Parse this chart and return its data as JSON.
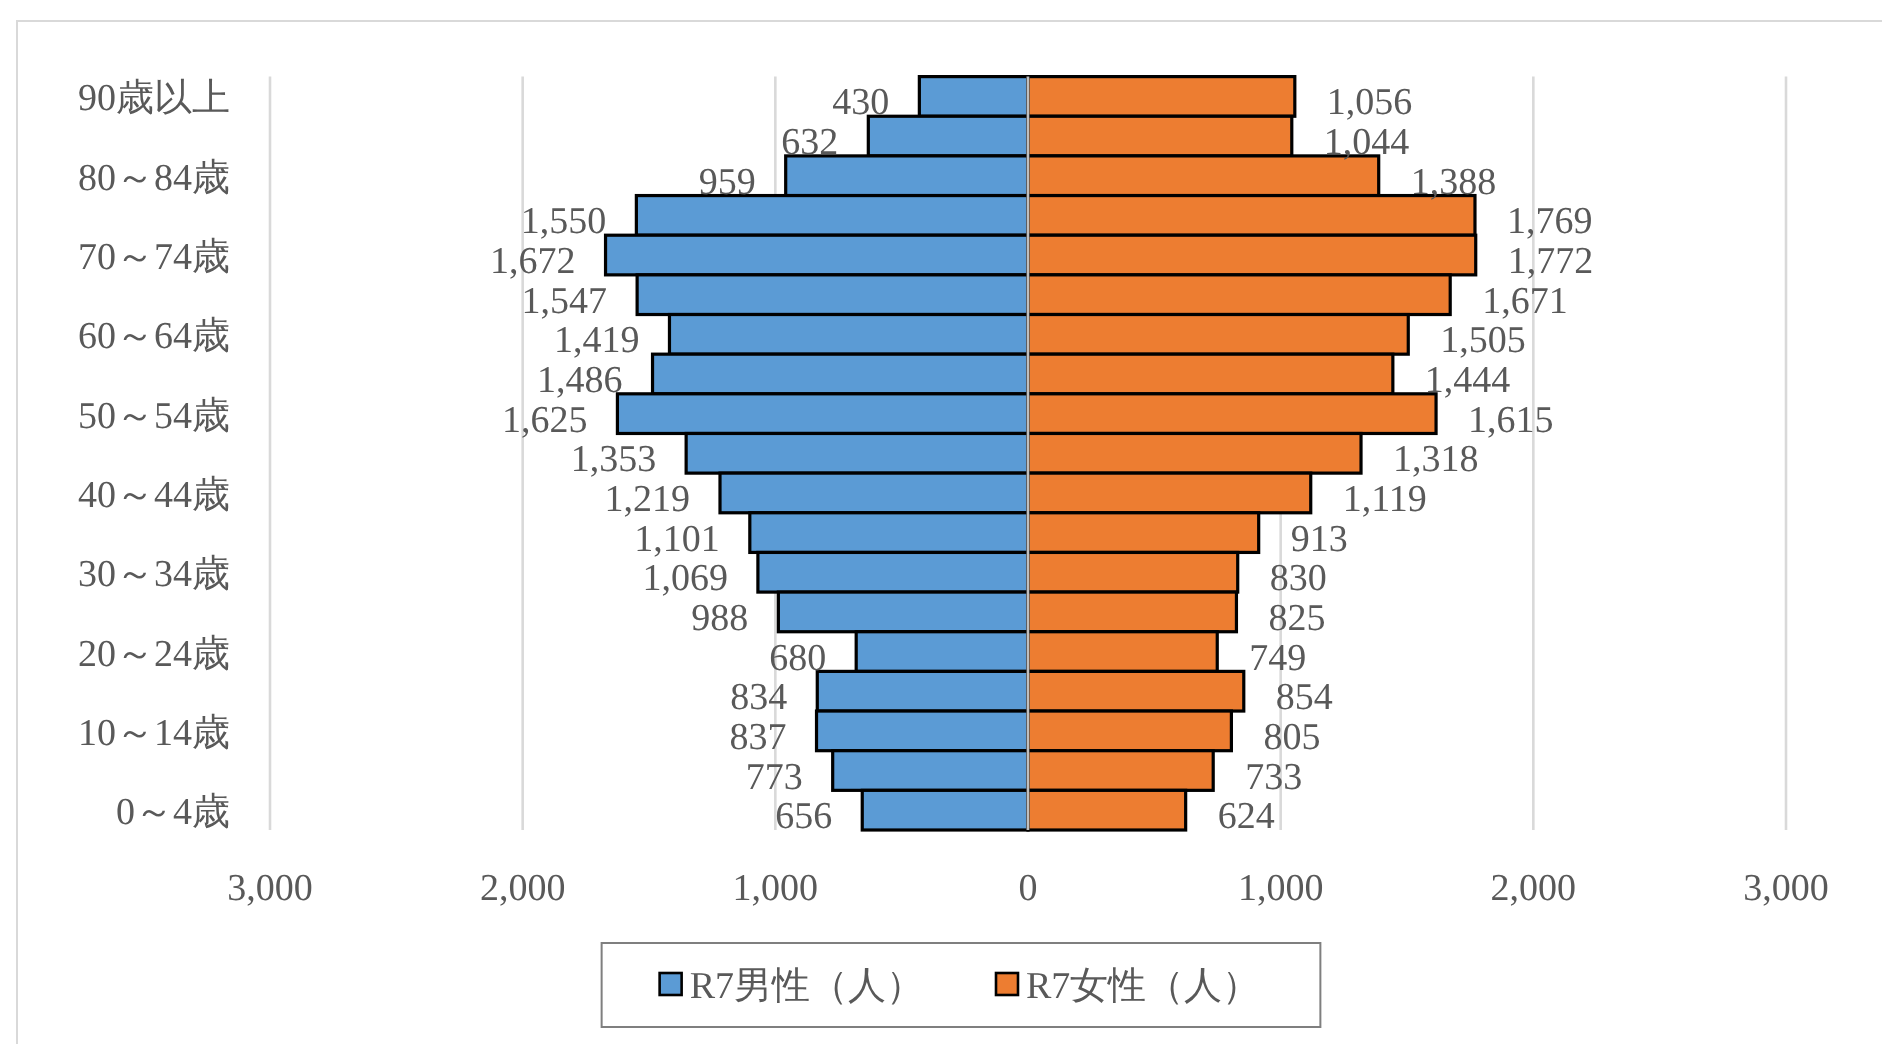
{
  "chart_data": [
    {
      "type": "bar",
      "orientation": "horizontal",
      "categories": [
        "90歳以上",
        null,
        "80～84歳",
        null,
        "70～74歳",
        null,
        "60～64歳",
        null,
        "50～54歳",
        null,
        "40～44歳",
        null,
        "30～34歳",
        null,
        "20～24歳",
        null,
        "10～14歳",
        null,
        "0～4歳"
      ],
      "series": [
        {
          "name": "R7男性（人）",
          "color": "#5b9bd5",
          "values": [
            430,
            632,
            959,
            1550,
            1672,
            1547,
            1419,
            1486,
            1625,
            1353,
            1219,
            1101,
            1069,
            988,
            680,
            834,
            837,
            773,
            656
          ],
          "value_labels": [
            "430",
            "632",
            "959",
            "1,550",
            "1,672",
            "1,547",
            "1,419",
            "1,486",
            "1,625",
            "1,353",
            "1,219",
            "1,101",
            "1,069",
            "988",
            "680",
            "834",
            "837",
            "773",
            "656"
          ]
        }
      ],
      "xlim": [
        3000,
        0
      ],
      "xticks": [
        {
          "value": 3000,
          "label": "3,000"
        },
        {
          "value": 2000,
          "label": "2,000"
        },
        {
          "value": 1000,
          "label": "1,000"
        },
        0
      ],
      "grid": "x",
      "legend": "bottom"
    },
    {
      "type": "bar",
      "orientation": "horizontal",
      "categories": [
        null,
        null,
        null,
        null,
        null,
        null,
        null,
        null,
        null,
        null,
        null,
        null,
        null,
        null,
        null,
        null,
        null,
        null,
        null
      ],
      "series": [
        {
          "name": "R7女性（人）",
          "color": "#ed7d31",
          "values": [
            1056,
            1044,
            1388,
            1769,
            1772,
            1671,
            1505,
            1444,
            1615,
            1318,
            1119,
            913,
            830,
            825,
            749,
            854,
            805,
            733,
            624
          ],
          "value_labels": [
            "1,056",
            "1,044",
            "1,388",
            "1,769",
            "1,772",
            "1,671",
            "1,505",
            "1,444",
            "1,615",
            "1,318",
            "1,119",
            "913",
            "830",
            "825",
            "749",
            "854",
            "805",
            "733",
            "624"
          ]
        }
      ],
      "xlim": [
        0,
        3000
      ],
      "xticks": [
        {
          "value": 0,
          "label": null
        },
        {
          "value": 1000,
          "label": "1,000"
        },
        {
          "value": 2000,
          "label": "2,000"
        },
        {
          "value": 3000,
          "label": "3,000"
        }
      ],
      "grid": "x",
      "legend": "bottom"
    }
  ]
}
